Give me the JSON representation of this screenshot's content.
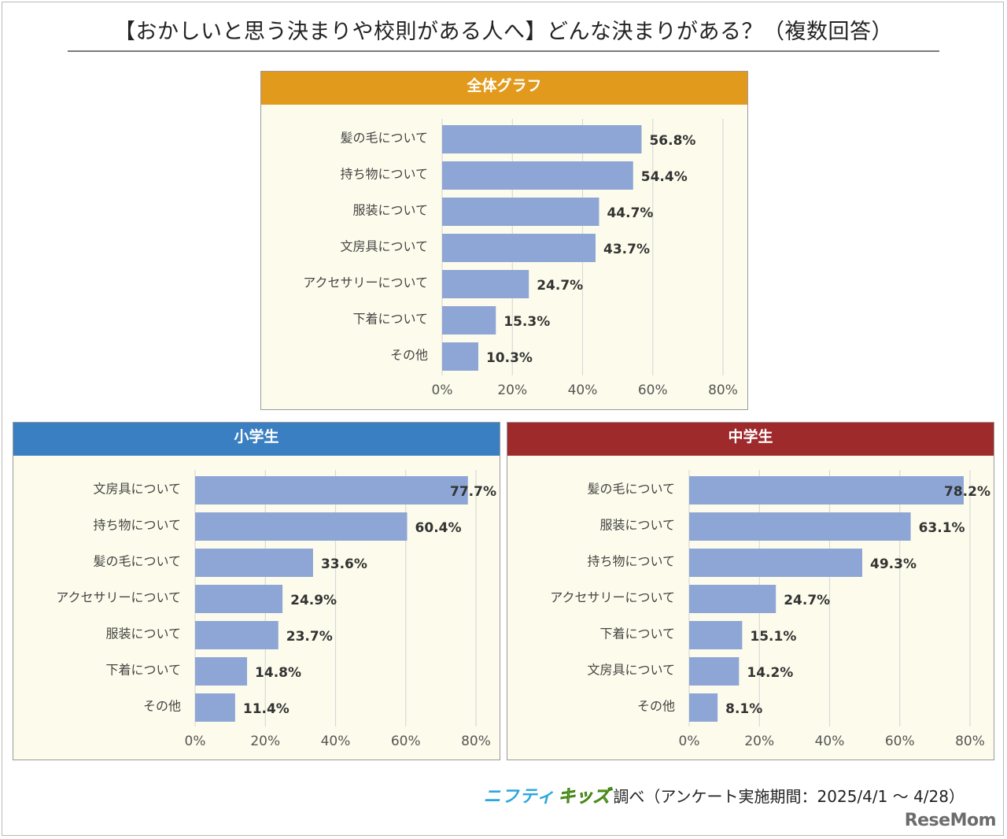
{
  "title": "【おかしいと思う決まりや校則がある人へ】どんな決まりがある？（複数回答）",
  "footer": {
    "logo_a": "ニフティ",
    "logo_b": "キッズ",
    "text": "調べ（アンケート実施期間：2025/4/1 ～ 4/28）"
  },
  "watermark": "ReseMom",
  "chart_data": [
    {
      "type": "bar",
      "orientation": "horizontal",
      "title": "全体グラフ",
      "header_color": "#e29a1c",
      "bar_color": "#8ea6d5",
      "categories": [
        "髪の毛について",
        "持ち物について",
        "服装について",
        "文房具について",
        "アクセサリーについて",
        "下着について",
        "その他"
      ],
      "values": [
        56.8,
        54.4,
        44.7,
        43.7,
        24.7,
        15.3,
        10.3
      ],
      "value_labels": [
        "56.8%",
        "54.4%",
        "44.7%",
        "43.7%",
        "24.7%",
        "15.3%",
        "10.3%"
      ],
      "xlim": [
        0,
        80
      ],
      "x_ticks": [
        "0%",
        "20%",
        "40%",
        "60%",
        "80%"
      ],
      "grid": true
    },
    {
      "type": "bar",
      "orientation": "horizontal",
      "title": "小学生",
      "header_color": "#3a7fc1",
      "bar_color": "#8ea6d5",
      "categories": [
        "文房具について",
        "持ち物について",
        "髪の毛について",
        "アクセサリーについて",
        "服装について",
        "下着について",
        "その他"
      ],
      "values": [
        77.7,
        60.4,
        33.6,
        24.9,
        23.7,
        14.8,
        11.4
      ],
      "value_labels": [
        "77.7%",
        "60.4%",
        "33.6%",
        "24.9%",
        "23.7%",
        "14.8%",
        "11.4%"
      ],
      "xlim": [
        0,
        80
      ],
      "x_ticks": [
        "0%",
        "20%",
        "40%",
        "60%",
        "80%"
      ],
      "grid": true
    },
    {
      "type": "bar",
      "orientation": "horizontal",
      "title": "中学生",
      "header_color": "#9e2a2b",
      "bar_color": "#8ea6d5",
      "categories": [
        "髪の毛について",
        "服装について",
        "持ち物について",
        "アクセサリーについて",
        "下着について",
        "文房具について",
        "その他"
      ],
      "values": [
        78.2,
        63.1,
        49.3,
        24.7,
        15.1,
        14.2,
        8.1
      ],
      "value_labels": [
        "78.2%",
        "63.1%",
        "49.3%",
        "24.7%",
        "15.1%",
        "14.2%",
        "8.1%"
      ],
      "xlim": [
        0,
        80
      ],
      "x_ticks": [
        "0%",
        "20%",
        "40%",
        "60%",
        "80%"
      ],
      "grid": true
    }
  ]
}
